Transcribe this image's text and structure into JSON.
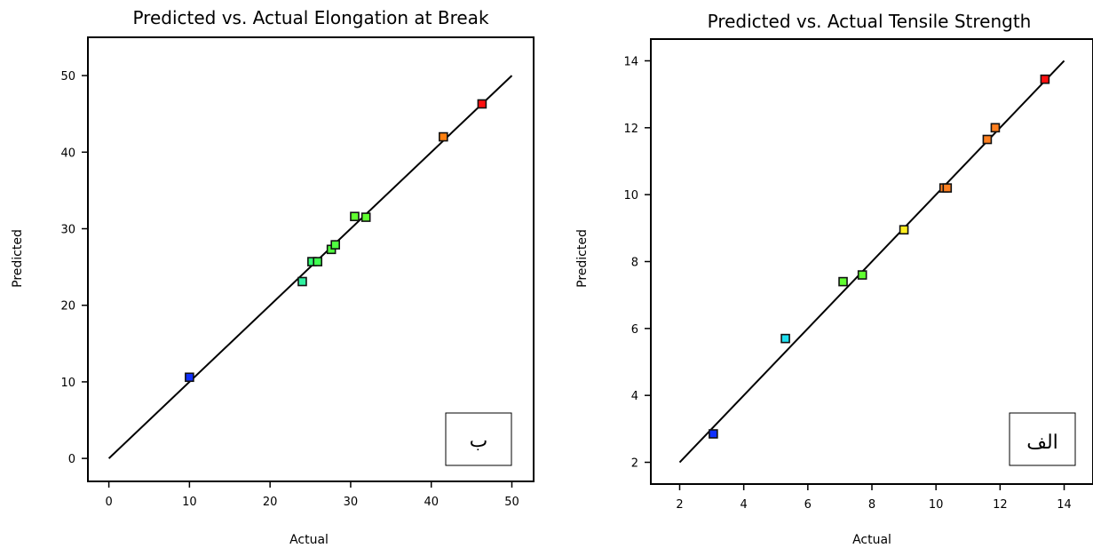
{
  "chart_data": [
    {
      "type": "scatter",
      "title": "Predicted vs. Actual Elongation at Break",
      "xlabel": "Actual",
      "ylabel": "Predicted",
      "xlim": [
        -2.6,
        52.7
      ],
      "ylim": [
        -3,
        55
      ],
      "xticks": [
        0,
        10,
        20,
        30,
        40,
        50
      ],
      "yticks": [
        0,
        10,
        20,
        30,
        40,
        50
      ],
      "xtick_labels": [
        "0",
        "10",
        "20",
        "30",
        "40",
        "50"
      ],
      "ytick_labels": [
        "0",
        "10",
        "20",
        "30",
        "40",
        "50"
      ],
      "grid": false,
      "reference_line": {
        "from": [
          0,
          0
        ],
        "to": [
          50,
          50
        ]
      },
      "panel_label": "ب",
      "points": [
        {
          "x": 10.0,
          "y": 10.6,
          "color": "#1030ff"
        },
        {
          "x": 24.0,
          "y": 23.1,
          "color": "#30f0a0"
        },
        {
          "x": 25.2,
          "y": 25.7,
          "color": "#30ff70"
        },
        {
          "x": 25.9,
          "y": 25.7,
          "color": "#40ff50"
        },
        {
          "x": 27.6,
          "y": 27.3,
          "color": "#50ff40"
        },
        {
          "x": 28.1,
          "y": 27.9,
          "color": "#50ff40"
        },
        {
          "x": 30.5,
          "y": 31.6,
          "color": "#60ff30"
        },
        {
          "x": 31.9,
          "y": 31.5,
          "color": "#60ff30"
        },
        {
          "x": 41.5,
          "y": 42.0,
          "color": "#ff8010"
        },
        {
          "x": 46.3,
          "y": 46.3,
          "color": "#ff1010"
        }
      ]
    },
    {
      "type": "scatter",
      "title": "Predicted vs. Actual Tensile Strength",
      "xlabel": "Actual",
      "ylabel": "Predicted",
      "xlim": [
        1.1,
        14.9
      ],
      "ylim": [
        1.35,
        14.65
      ],
      "xticks": [
        2,
        4,
        6,
        8,
        10,
        12,
        14
      ],
      "yticks": [
        2,
        4,
        6,
        8,
        10,
        12,
        14
      ],
      "xtick_labels": [
        "2",
        "4",
        "6",
        "8",
        "10",
        "12",
        "14"
      ],
      "ytick_labels": [
        "2",
        "4",
        "6",
        "8",
        "10",
        "12",
        "14"
      ],
      "grid": false,
      "reference_line": {
        "from": [
          2,
          2
        ],
        "to": [
          14,
          14
        ]
      },
      "panel_label": "الف",
      "points": [
        {
          "x": 3.05,
          "y": 2.85,
          "color": "#1030ff"
        },
        {
          "x": 5.3,
          "y": 5.7,
          "color": "#20e0f0"
        },
        {
          "x": 7.1,
          "y": 7.4,
          "color": "#60ff30"
        },
        {
          "x": 7.7,
          "y": 7.6,
          "color": "#60ff30"
        },
        {
          "x": 9.0,
          "y": 8.95,
          "color": "#ffee20"
        },
        {
          "x": 10.25,
          "y": 10.2,
          "color": "#ff8020"
        },
        {
          "x": 10.35,
          "y": 10.2,
          "color": "#ff8020"
        },
        {
          "x": 11.6,
          "y": 11.65,
          "color": "#ff8020"
        },
        {
          "x": 11.85,
          "y": 12.0,
          "color": "#ff8020"
        },
        {
          "x": 13.4,
          "y": 13.45,
          "color": "#ff1010"
        }
      ]
    }
  ]
}
